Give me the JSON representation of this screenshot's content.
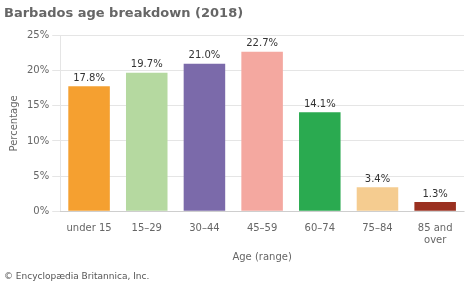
{
  "chart_data": {
    "type": "bar",
    "title": "Barbados age breakdown (2018)",
    "categories": [
      "under 15",
      "15–29",
      "30–44",
      "45–59",
      "60–74",
      "75–84",
      "85 and\nover"
    ],
    "values": [
      17.8,
      19.7,
      21.0,
      22.7,
      14.1,
      3.4,
      1.3
    ],
    "value_labels": [
      "17.8%",
      "19.7%",
      "21.0%",
      "22.7%",
      "14.1%",
      "3.4%",
      "1.3%"
    ],
    "data_labels": true,
    "colors": [
      "#f5a030",
      "#b5d9a0",
      "#7b6aaa",
      "#f4a8a0",
      "#2aaa50",
      "#f5cc90",
      "#9a3020"
    ],
    "xlabel": "Age (range)",
    "ylabel": "Percentage",
    "ylim": [
      0,
      25
    ],
    "yticks": [
      {
        "value": 0,
        "label": "0%"
      },
      {
        "value": 5,
        "label": "5%"
      },
      {
        "value": 10,
        "label": "10%"
      },
      {
        "value": 15,
        "label": "15%"
      },
      {
        "value": 20,
        "label": "20%"
      },
      {
        "value": 25,
        "label": "25%"
      }
    ],
    "grid": true,
    "footnote": "© Encyclopædia Britannica, Inc."
  }
}
